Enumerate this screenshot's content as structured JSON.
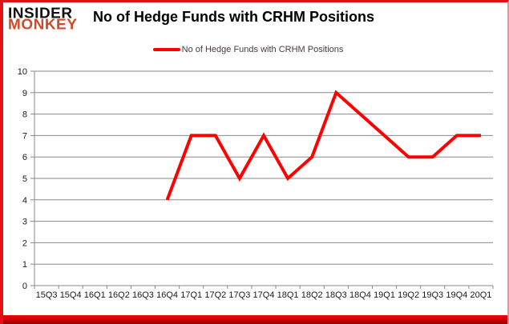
{
  "page": {
    "background_color": "#ffffff",
    "border_color": "#e01313",
    "bottom_band_colors": [
      "#f40000",
      "#8f0000"
    ]
  },
  "logo": {
    "line1": "INSIDER",
    "line2": "MONKEY",
    "line1_color": "#111111",
    "line2_color": "#d2492a"
  },
  "header": {
    "title": "No of Hedge Funds with CRHM Positions"
  },
  "legend": {
    "label": "No of Hedge Funds with CRHM Positions",
    "swatch_color": "#ff0000",
    "text_color": "#4a3b39"
  },
  "chart_data": {
    "type": "line",
    "title": "No of Hedge Funds with CRHM Positions",
    "categories": [
      "15Q3",
      "15Q4",
      "16Q1",
      "16Q2",
      "16Q3",
      "16Q4",
      "17Q1",
      "17Q2",
      "17Q3",
      "17Q4",
      "18Q1",
      "18Q2",
      "18Q3",
      "18Q4",
      "19Q1",
      "19Q2",
      "19Q3",
      "19Q4",
      "20Q1"
    ],
    "series": [
      {
        "name": "No of Hedge Funds with CRHM Positions",
        "color": "#ff0000",
        "values": [
          null,
          null,
          null,
          null,
          null,
          4,
          7,
          7,
          5,
          7,
          5,
          6,
          9,
          8,
          7,
          6,
          6,
          7,
          7
        ]
      }
    ],
    "xlabel": "",
    "ylabel": "",
    "ylim": [
      0,
      10
    ],
    "yticks": [
      0,
      1,
      2,
      3,
      4,
      5,
      6,
      7,
      8,
      9,
      10
    ],
    "grid": true,
    "gridline_color": "#898989",
    "axis_color": "#898989",
    "tick_label_color": "#1a1a1a",
    "legend_position": "top"
  }
}
